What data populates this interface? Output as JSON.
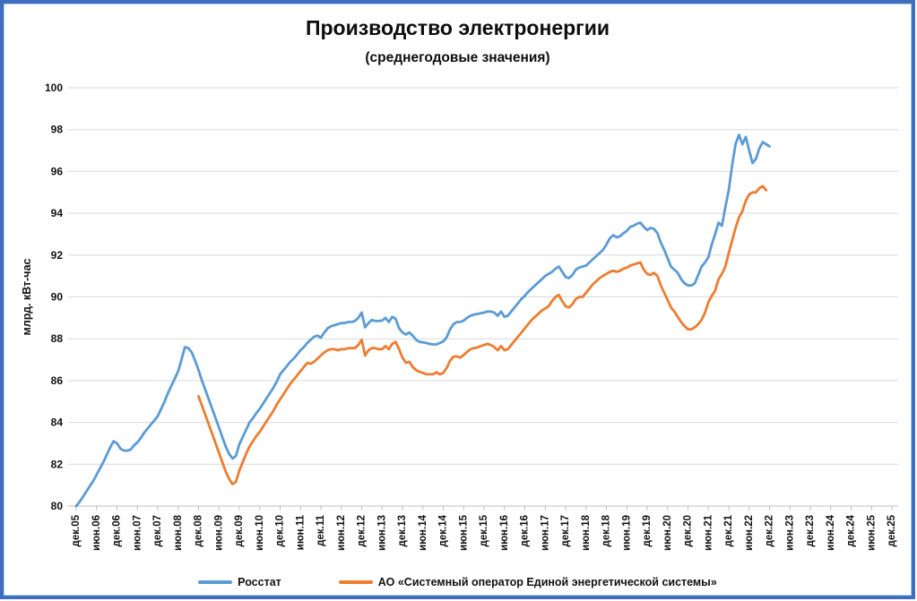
{
  "frame": {
    "border_color": "#3d6ec0"
  },
  "chart_data": {
    "type": "line",
    "title": "Производство электронергии",
    "subtitle": "(среднегодовые значения)",
    "ylabel": "млрд. кВт-час",
    "ylim": [
      80,
      100
    ],
    "ytick_step": 2,
    "y_ticks": [
      80,
      82,
      84,
      86,
      88,
      90,
      92,
      94,
      96,
      98,
      100
    ],
    "grid": true,
    "legend_position": "bottom",
    "x_tick_every_months": 6,
    "x_ticks": [
      "дек.05",
      "июн.06",
      "дек.06",
      "июн.07",
      "дек.07",
      "июн.08",
      "дек.08",
      "июн.09",
      "дек.09",
      "июн.10",
      "дек.10",
      "июн.11",
      "дек.11",
      "июн.12",
      "дек.12",
      "июн.13",
      "дек.13",
      "июн.14",
      "дек.14",
      "июн.15",
      "дек.15",
      "июн.16",
      "дек.16",
      "июн.17",
      "дек.17",
      "июн.18",
      "дек.18",
      "июн.19",
      "дек.19",
      "июн.20",
      "дек.20",
      "июн.21",
      "дек.21",
      "июн.22",
      "дек.22",
      "июн.23",
      "дек.23",
      "июн.24",
      "дек.24",
      "июн.25",
      "дек.25"
    ],
    "x_axis_note": "monthly points, month 0 = дек.05, month 240 = дек.25",
    "series": [
      {
        "name": "Росстат",
        "color": "#5B9BD5",
        "start_month": 0,
        "values": [
          80.0,
          80.2,
          80.45,
          80.7,
          80.95,
          81.2,
          81.5,
          81.8,
          82.1,
          82.45,
          82.8,
          83.1,
          83.0,
          82.75,
          82.65,
          82.65,
          82.7,
          82.9,
          83.05,
          83.25,
          83.5,
          83.7,
          83.9,
          84.1,
          84.3,
          84.65,
          85.0,
          85.4,
          85.75,
          86.1,
          86.45,
          87.0,
          87.6,
          87.55,
          87.35,
          86.95,
          86.5,
          86.0,
          85.55,
          85.1,
          84.65,
          84.2,
          83.75,
          83.3,
          82.85,
          82.5,
          82.27,
          82.4,
          82.95,
          83.3,
          83.65,
          84.0,
          84.2,
          84.45,
          84.65,
          84.9,
          85.15,
          85.4,
          85.65,
          85.95,
          86.3,
          86.5,
          86.7,
          86.9,
          87.05,
          87.25,
          87.45,
          87.6,
          87.8,
          87.95,
          88.1,
          88.15,
          88.05,
          88.3,
          88.5,
          88.6,
          88.65,
          88.7,
          88.75,
          88.75,
          88.8,
          88.8,
          88.85,
          89.0,
          89.25,
          88.55,
          88.75,
          88.9,
          88.85,
          88.85,
          88.87,
          89.0,
          88.8,
          89.05,
          88.95,
          88.5,
          88.3,
          88.2,
          88.3,
          88.15,
          87.95,
          87.85,
          87.83,
          87.8,
          87.75,
          87.73,
          87.73,
          87.8,
          87.87,
          88.07,
          88.45,
          88.7,
          88.8,
          88.8,
          88.87,
          89.0,
          89.1,
          89.15,
          89.18,
          89.22,
          89.25,
          89.3,
          89.3,
          89.25,
          89.1,
          89.3,
          89.05,
          89.1,
          89.3,
          89.5,
          89.7,
          89.9,
          90.05,
          90.25,
          90.4,
          90.55,
          90.7,
          90.85,
          91.0,
          91.1,
          91.2,
          91.35,
          91.45,
          91.2,
          90.95,
          90.9,
          91.05,
          91.3,
          91.4,
          91.45,
          91.5,
          91.65,
          91.8,
          91.95,
          92.1,
          92.25,
          92.5,
          92.8,
          92.95,
          92.85,
          92.9,
          93.05,
          93.15,
          93.35,
          93.4,
          93.5,
          93.55,
          93.35,
          93.2,
          93.3,
          93.25,
          93.05,
          92.6,
          92.25,
          91.85,
          91.45,
          91.3,
          91.15,
          90.85,
          90.65,
          90.55,
          90.55,
          90.65,
          91.05,
          91.45,
          91.65,
          91.9,
          92.5,
          93.0,
          93.55,
          93.4,
          94.3,
          95.1,
          96.3,
          97.3,
          97.75,
          97.3,
          97.65,
          97.0,
          96.4,
          96.6,
          97.1,
          97.4,
          97.3,
          97.2
        ]
      },
      {
        "name": "АО «Системный оператор Единой энергетической системы»",
        "color": "#ED7D31",
        "start_month": 36,
        "values": [
          85.25,
          84.8,
          84.35,
          83.9,
          83.45,
          83.0,
          82.55,
          82.1,
          81.65,
          81.3,
          81.05,
          81.15,
          81.7,
          82.1,
          82.5,
          82.85,
          83.1,
          83.35,
          83.55,
          83.8,
          84.05,
          84.3,
          84.55,
          84.85,
          85.1,
          85.35,
          85.6,
          85.85,
          86.05,
          86.25,
          86.45,
          86.65,
          86.85,
          86.8,
          86.9,
          87.05,
          87.2,
          87.35,
          87.45,
          87.5,
          87.5,
          87.45,
          87.5,
          87.5,
          87.55,
          87.55,
          87.55,
          87.7,
          87.95,
          87.2,
          87.45,
          87.55,
          87.55,
          87.5,
          87.5,
          87.65,
          87.5,
          87.75,
          87.85,
          87.5,
          87.1,
          86.85,
          86.9,
          86.65,
          86.5,
          86.42,
          86.37,
          86.3,
          86.3,
          86.3,
          86.4,
          86.3,
          86.37,
          86.6,
          86.95,
          87.15,
          87.15,
          87.1,
          87.22,
          87.37,
          87.5,
          87.55,
          87.58,
          87.65,
          87.7,
          87.75,
          87.7,
          87.6,
          87.45,
          87.65,
          87.45,
          87.5,
          87.7,
          87.9,
          88.1,
          88.3,
          88.5,
          88.7,
          88.9,
          89.05,
          89.2,
          89.35,
          89.45,
          89.55,
          89.8,
          90.0,
          90.1,
          89.8,
          89.55,
          89.5,
          89.65,
          89.9,
          90.0,
          90.0,
          90.2,
          90.4,
          90.6,
          90.75,
          90.9,
          91.0,
          91.1,
          91.2,
          91.25,
          91.2,
          91.25,
          91.35,
          91.4,
          91.5,
          91.55,
          91.6,
          91.65,
          91.3,
          91.1,
          91.05,
          91.15,
          91.0,
          90.55,
          90.2,
          89.85,
          89.5,
          89.3,
          89.05,
          88.8,
          88.6,
          88.45,
          88.45,
          88.55,
          88.7,
          88.9,
          89.25,
          89.75,
          90.05,
          90.3,
          90.85,
          91.1,
          91.45,
          92.1,
          92.7,
          93.3,
          93.8,
          94.1,
          94.6,
          94.9,
          95.0,
          95.0,
          95.2,
          95.3,
          95.1
        ]
      }
    ]
  }
}
